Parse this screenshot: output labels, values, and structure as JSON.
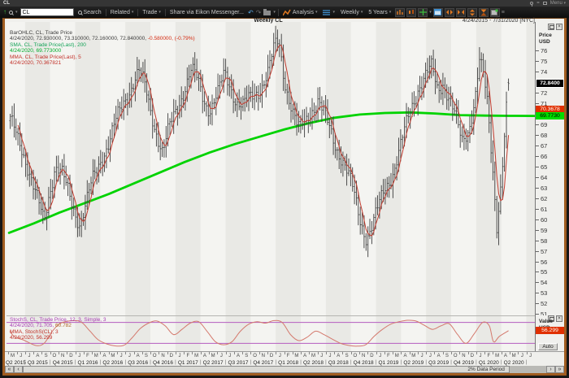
{
  "titlebar": {
    "title": "CL",
    "menu_label": "Menu"
  },
  "toolbar": {
    "symbol_value": "CL",
    "search_label": "Search",
    "related_label": "Related",
    "trade_label": "Trade",
    "share_label": "Share via Eikon Messenger...",
    "analysis_label": "Analysis",
    "interval_label": "Weekly",
    "range_label": "5 Years"
  },
  "chart_header": {
    "title": "Weekly CL",
    "date_range": "4/24/2015 - 7/31/2020 [NYC]"
  },
  "price_panel": {
    "legend": [
      [
        {
          "t": "BarOHLC, CL, Trade Price",
          "c": "#3c3c3c"
        }
      ],
      [
        {
          "t": "4/24/2020, 72.930000, 73.310000, 72.160000, 72.840000, ",
          "c": "#3c3c3c"
        },
        {
          "t": "-0.580000, (-0.79%)",
          "c": "#d42a10"
        }
      ],
      [
        {
          "t": "SMA, CL, Trade Price(Last),  200",
          "c": "#11a256"
        }
      ],
      [
        {
          "t": "4/24/2020, 69.773000",
          "c": "#00ac2c"
        }
      ],
      [
        {
          "t": "MMA, CL, Trade Price(Last),  5",
          "c": "#c23028"
        }
      ],
      [
        {
          "t": "4/24/2020, 70.367821",
          "c": "#c23028"
        }
      ]
    ],
    "axis_title": "Price",
    "axis_unit": "USD",
    "auto_label": "Auto",
    "last_price_label": "72.8400",
    "mma_label": "70.3678",
    "sma_label": "69.7730"
  },
  "value_panel": {
    "legend": [
      [
        {
          "t": "StochS, CL, Trade Price,  12, 3, Simple, 3",
          "c": "#a63ab4"
        }
      ],
      [
        {
          "t": "4/24/2020, 71.705, ",
          "c": "#a63ab4"
        },
        {
          "t": "60.782",
          "c": "#b06a28"
        }
      ],
      [
        {
          "t": "MMA, StochS(CL),  3",
          "c": "#c23028"
        }
      ],
      [
        {
          "t": "4/24/2020, 56.299",
          "c": "#c23028"
        }
      ]
    ],
    "axis_title": "Value",
    "axis_unit": "USD",
    "auto_label": "Auto",
    "mma_value_label": "56.299"
  },
  "scrollbar": {
    "first": "«",
    "prev": "‹",
    "label": "2% Data Period",
    "next": "›",
    "last": "»"
  },
  "chart_data": {
    "type": "ohlc",
    "title": "Weekly CL",
    "instrument": "CL",
    "interval": "Weekly",
    "range_shown": "4/24/2015 - 7/31/2020 [NYC]",
    "y_axis": {
      "label": "Price USD",
      "min": 51,
      "max": 78.5,
      "tick_interval": 1,
      "visible_ticks": [
        76,
        75,
        74,
        72,
        71,
        69,
        68,
        67,
        66,
        65,
        64,
        63,
        62,
        61,
        60,
        59,
        58,
        57,
        56,
        55,
        54,
        53,
        52,
        51
      ]
    },
    "last_bar": {
      "date": "4/24/2020",
      "open": 72.93,
      "high": 73.31,
      "low": 72.16,
      "close": 72.84,
      "net_change": -0.58,
      "pct_change": -0.79
    },
    "series": [
      {
        "name": "BarOHLC CL Trade Price",
        "type": "ohlc_bars",
        "color": "#3d3d3d",
        "close_anchors": [
          [
            0.4,
            69.2
          ],
          [
            1.1,
            68.2
          ],
          [
            1.9,
            66.8
          ],
          [
            2.6,
            64.8
          ],
          [
            3.3,
            62.6
          ],
          [
            3.9,
            61.2
          ],
          [
            4.5,
            59.9
          ],
          [
            5.1,
            62.5
          ],
          [
            5.8,
            64.9
          ],
          [
            6.6,
            64.2
          ],
          [
            7.3,
            62.8
          ],
          [
            8.1,
            61.0
          ],
          [
            8.8,
            59.6
          ],
          [
            9.5,
            61.2
          ],
          [
            10.3,
            63.6
          ],
          [
            11.3,
            65.8
          ],
          [
            12.3,
            67.3
          ],
          [
            13.3,
            69.6
          ],
          [
            14.3,
            71.6
          ],
          [
            15.3,
            73.2
          ],
          [
            15.9,
            73.9
          ],
          [
            16.6,
            72.4
          ],
          [
            17.3,
            70.2
          ],
          [
            18.1,
            67.9
          ],
          [
            18.7,
            66.2
          ],
          [
            19.3,
            68.0
          ],
          [
            20.3,
            70.4
          ],
          [
            21.3,
            72.4
          ],
          [
            22.1,
            74.0
          ],
          [
            22.8,
            73.2
          ],
          [
            23.6,
            71.4
          ],
          [
            24.3,
            70.5
          ],
          [
            25.3,
            71.8
          ],
          [
            26.1,
            73.6
          ],
          [
            26.8,
            72.6
          ],
          [
            27.6,
            71.2
          ],
          [
            28.3,
            70.7
          ],
          [
            29.3,
            71.4
          ],
          [
            30.3,
            72.4
          ],
          [
            31.3,
            73.9
          ],
          [
            32.1,
            76.2
          ],
          [
            32.6,
            76.8
          ],
          [
            33.3,
            73.2
          ],
          [
            34.3,
            70.1
          ],
          [
            34.9,
            68.4
          ],
          [
            35.7,
            69.0
          ],
          [
            36.3,
            70.2
          ],
          [
            37.3,
            71.3
          ],
          [
            38.3,
            69.2
          ],
          [
            39.3,
            67.2
          ],
          [
            40.3,
            65.6
          ],
          [
            41.3,
            63.2
          ],
          [
            42.3,
            60.0
          ],
          [
            43.1,
            58.4
          ],
          [
            43.8,
            59.4
          ],
          [
            44.6,
            61.2
          ],
          [
            45.3,
            62.9
          ],
          [
            46.3,
            64.6
          ],
          [
            47.3,
            67.2
          ],
          [
            48.3,
            70.1
          ],
          [
            49.3,
            72.6
          ],
          [
            50.3,
            73.7
          ],
          [
            50.9,
            74.2
          ],
          [
            51.6,
            72.2
          ],
          [
            52.3,
            73.1
          ],
          [
            53.1,
            71.2
          ],
          [
            53.8,
            69.4
          ],
          [
            54.5,
            67.2
          ],
          [
            55.3,
            68.6
          ],
          [
            56.1,
            71.5
          ],
          [
            56.6,
            74.9
          ],
          [
            57.1,
            73.4
          ],
          [
            57.6,
            70.6
          ],
          [
            58.3,
            64.0
          ],
          [
            58.7,
            59.6
          ],
          [
            59.1,
            62.5
          ],
          [
            59.5,
            66.5
          ],
          [
            59.8,
            69.8
          ],
          [
            60.1,
            72.84
          ]
        ]
      },
      {
        "name": "SMA 200",
        "type": "line",
        "color": "#00d300",
        "last_value": 69.773,
        "points": [
          [
            0.3,
            58.7
          ],
          [
            3.3,
            59.6
          ],
          [
            6.3,
            60.6
          ],
          [
            9.3,
            61.5
          ],
          [
            12.3,
            62.4
          ],
          [
            15.3,
            63.4
          ],
          [
            18.3,
            64.4
          ],
          [
            21.3,
            65.4
          ],
          [
            24.3,
            66.3
          ],
          [
            27.3,
            67.1
          ],
          [
            30.3,
            67.8
          ],
          [
            33.3,
            68.5
          ],
          [
            36.3,
            69.1
          ],
          [
            39.3,
            69.6
          ],
          [
            42.3,
            69.9
          ],
          [
            45.3,
            70.05
          ],
          [
            48.3,
            70.1
          ],
          [
            51.3,
            70.0
          ],
          [
            54.3,
            69.85
          ],
          [
            57.3,
            69.8
          ],
          [
            60.1,
            69.78
          ],
          [
            63.2,
            69.77
          ]
        ]
      },
      {
        "name": "MMA 5",
        "type": "line",
        "color": "#c23b2e",
        "last_value": 70.367821,
        "basis": "5-bar moving average of weekly closes"
      }
    ],
    "lower_panel": {
      "name": "StochS(12,3,Simple,3) with MMA(3)",
      "y_axis": "Value USD",
      "bands": [
        80,
        20
      ],
      "band_color": "#b55cc0",
      "line_color": "#d4796d",
      "last_values": {
        "stoch_k": 71.705,
        "stoch_d": 60.782,
        "mma3": 56.299
      },
      "mma_points": [
        [
          0.4,
          55
        ],
        [
          1,
          38
        ],
        [
          2,
          30
        ],
        [
          3.5,
          14
        ],
        [
          4.5,
          20
        ],
        [
          5.5,
          55
        ],
        [
          6.5,
          78
        ],
        [
          8,
          85
        ],
        [
          9,
          80
        ],
        [
          10,
          55
        ],
        [
          11,
          30
        ],
        [
          12.5,
          15
        ],
        [
          14,
          14
        ],
        [
          15,
          35
        ],
        [
          16,
          62
        ],
        [
          17,
          78
        ],
        [
          18,
          84
        ],
        [
          19,
          70
        ],
        [
          20,
          45
        ],
        [
          21,
          60
        ],
        [
          22,
          78
        ],
        [
          23,
          82
        ],
        [
          24,
          55
        ],
        [
          25,
          25
        ],
        [
          26,
          16
        ],
        [
          27,
          25
        ],
        [
          28,
          55
        ],
        [
          29,
          75
        ],
        [
          30,
          82
        ],
        [
          31,
          78
        ],
        [
          32,
          85
        ],
        [
          33,
          80
        ],
        [
          34,
          45
        ],
        [
          35,
          28
        ],
        [
          36,
          38
        ],
        [
          37,
          55
        ],
        [
          38,
          45
        ],
        [
          39,
          32
        ],
        [
          40,
          20
        ],
        [
          41,
          14
        ],
        [
          42,
          12
        ],
        [
          43,
          16
        ],
        [
          44,
          40
        ],
        [
          45,
          60
        ],
        [
          46,
          75
        ],
        [
          47,
          82
        ],
        [
          48,
          86
        ],
        [
          49,
          84
        ],
        [
          50,
          72
        ],
        [
          51,
          60
        ],
        [
          52,
          70
        ],
        [
          53,
          76
        ],
        [
          54,
          45
        ],
        [
          55,
          20
        ],
        [
          56,
          48
        ],
        [
          57,
          80
        ],
        [
          57.8,
          70
        ],
        [
          58.3,
          25
        ],
        [
          59,
          40
        ],
        [
          60.1,
          56.3
        ]
      ]
    },
    "x_axis": {
      "months": [
        "M",
        "J",
        "J",
        "A",
        "S",
        "O",
        "N",
        "D",
        "J",
        "F",
        "M",
        "A",
        "M",
        "J",
        "J",
        "A",
        "S",
        "O",
        "N",
        "D",
        "J",
        "F",
        "M",
        "A",
        "M",
        "J",
        "J",
        "A",
        "S",
        "O",
        "N",
        "D",
        "J",
        "F",
        "M",
        "A",
        "M",
        "J",
        "J",
        "A",
        "S",
        "O",
        "N",
        "D",
        "J",
        "F",
        "M",
        "A",
        "M",
        "J",
        "J",
        "A",
        "S",
        "O",
        "N",
        "D",
        "J",
        "F",
        "M",
        "A",
        "M",
        "J",
        "J"
      ],
      "quarters": [
        "Q2 2015",
        "Q3 2015",
        "Q4 2015",
        "Q1 2016",
        "Q2 2016",
        "Q3 2016",
        "Q4 2016",
        "Q1 2017",
        "Q2 2017",
        "Q3 2017",
        "Q4 2017",
        "Q1 2018",
        "Q2 2018",
        "Q3 2018",
        "Q4 2018",
        "Q1 2019",
        "Q2 2019",
        "Q3 2019",
        "Q4 2019",
        "Q1 2020",
        "Q2 2020"
      ]
    }
  }
}
